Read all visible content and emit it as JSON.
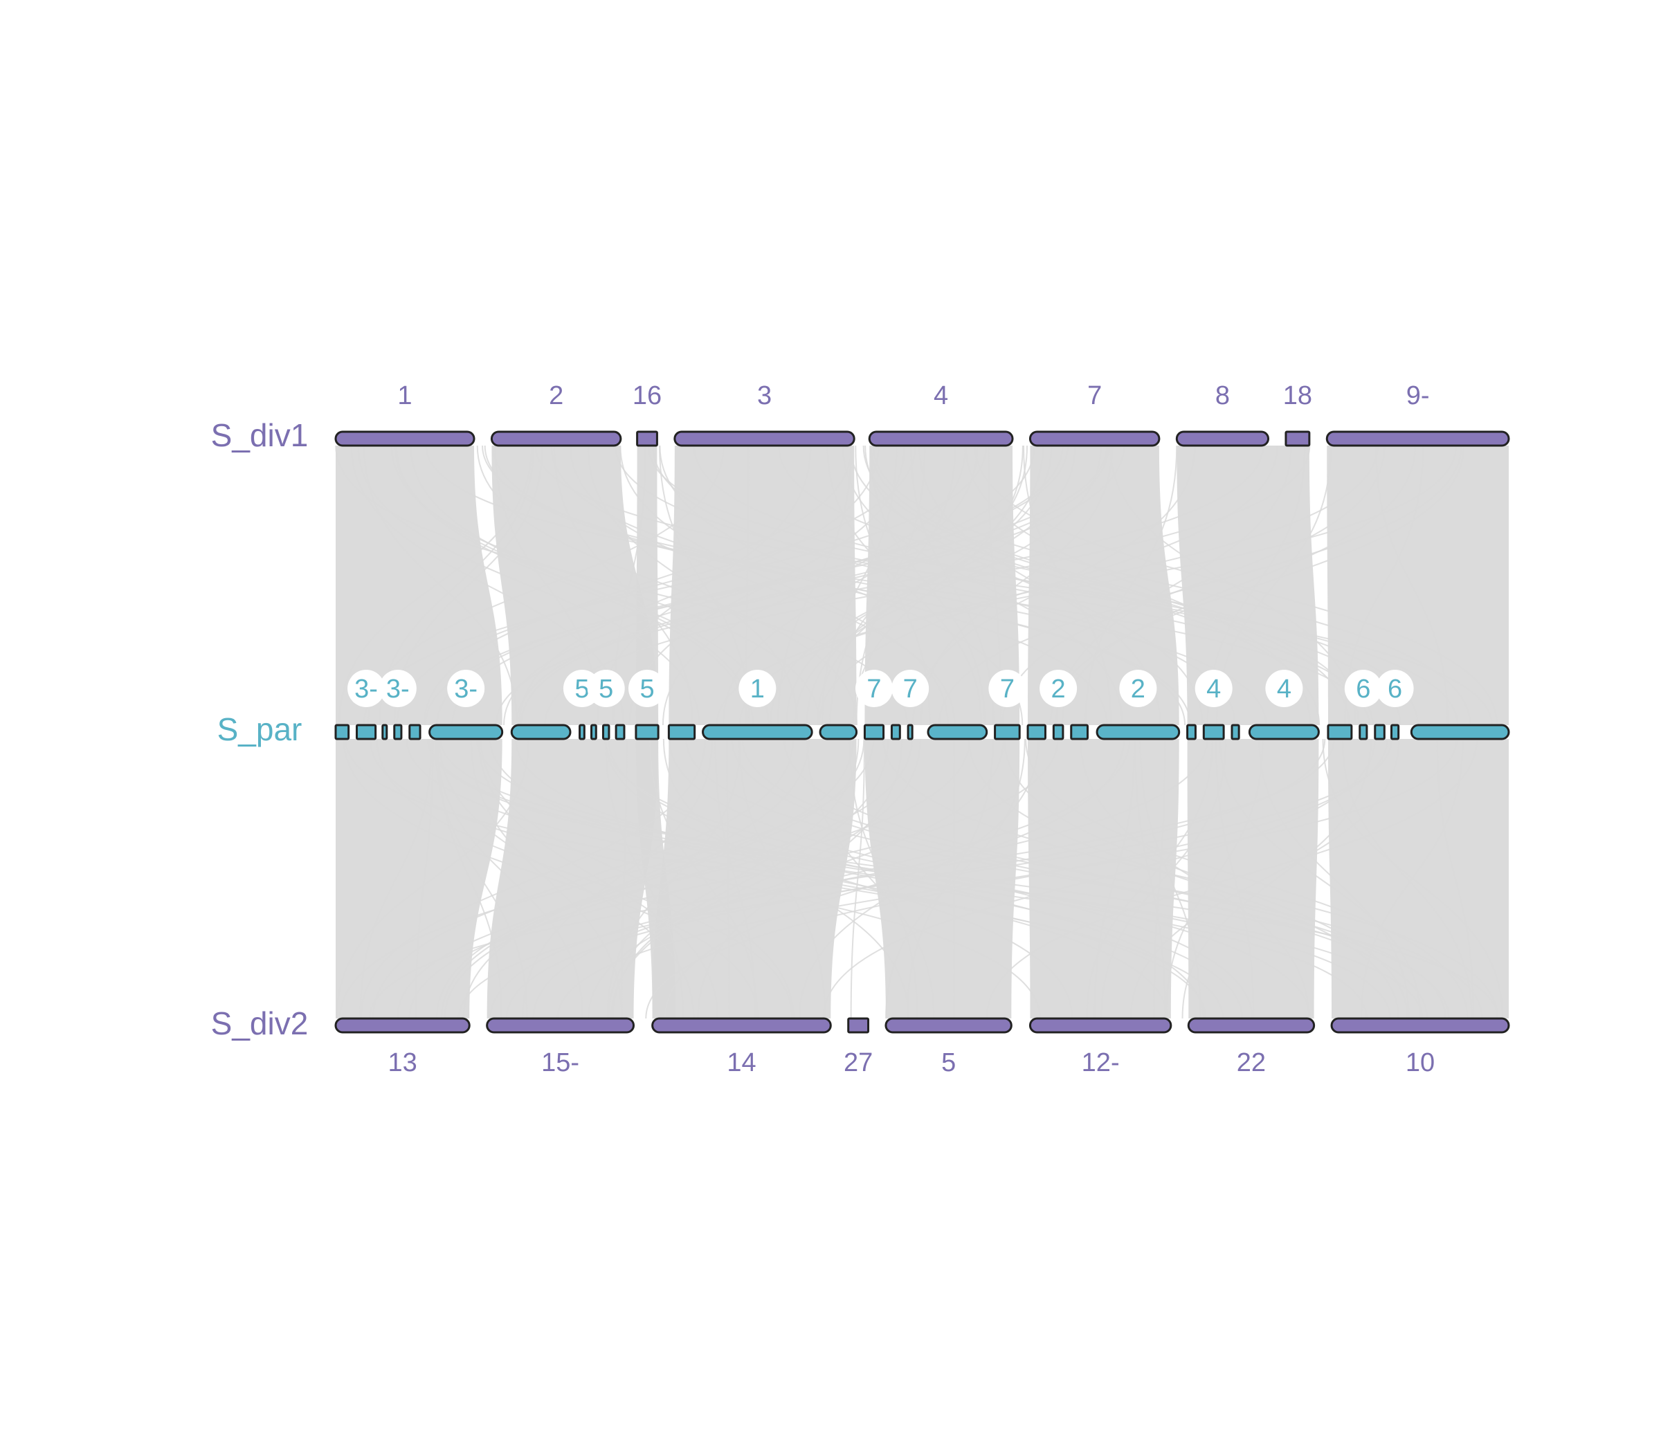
{
  "colors": {
    "div_fill": "#8878b8",
    "div_text": "#7b6fb0",
    "par_fill": "#5ab4c9",
    "par_text": "#58b2c6",
    "outline": "#222222",
    "link": "#d9d9d9",
    "background": "#ffffff"
  },
  "tracks": [
    {
      "id": "S_div1",
      "label": "S_div1",
      "color_key": "div",
      "label_side": "above",
      "chromosomes": [
        {
          "label": "1",
          "start": 0.0,
          "end": 0.118
        },
        {
          "label": "2",
          "start": 0.133,
          "end": 0.243
        },
        {
          "label": "16",
          "start": 0.257,
          "end": 0.274
        },
        {
          "label": "3",
          "start": 0.289,
          "end": 0.442
        },
        {
          "label": "4",
          "start": 0.455,
          "end": 0.577
        },
        {
          "label": "7",
          "start": 0.592,
          "end": 0.702
        },
        {
          "label": "8",
          "start": 0.717,
          "end": 0.795
        },
        {
          "label": "18",
          "start": 0.81,
          "end": 0.83
        },
        {
          "label": "9-",
          "start": 0.845,
          "end": 1.0
        }
      ]
    },
    {
      "id": "S_par",
      "label": "S_par",
      "color_key": "par",
      "label_side": "above-badge",
      "chromosomes": [
        {
          "label": "",
          "start": 0.0,
          "end": 0.011
        },
        {
          "label": "3-",
          "start": 0.018,
          "end": 0.034
        },
        {
          "label": "",
          "start": 0.04,
          "end": 0.043
        },
        {
          "label": "3-",
          "start": 0.05,
          "end": 0.056
        },
        {
          "label": "",
          "start": 0.063,
          "end": 0.072
        },
        {
          "label": "3-",
          "start": 0.08,
          "end": 0.142
        },
        {
          "label": "",
          "start": 0.15,
          "end": 0.2
        },
        {
          "label": "5",
          "start": 0.208,
          "end": 0.212
        },
        {
          "label": "",
          "start": 0.218,
          "end": 0.222
        },
        {
          "label": "5",
          "start": 0.228,
          "end": 0.233
        },
        {
          "label": "",
          "start": 0.239,
          "end": 0.246
        },
        {
          "label": "5",
          "start": 0.256,
          "end": 0.275
        },
        {
          "label": "",
          "start": 0.284,
          "end": 0.306
        },
        {
          "label": "1",
          "start": 0.313,
          "end": 0.406
        },
        {
          "label": "",
          "start": 0.413,
          "end": 0.444
        },
        {
          "label": "7",
          "start": 0.451,
          "end": 0.467
        },
        {
          "label": "",
          "start": 0.474,
          "end": 0.481
        },
        {
          "label": "7",
          "start": 0.488,
          "end": 0.491
        },
        {
          "label": "",
          "start": 0.505,
          "end": 0.555
        },
        {
          "label": "7",
          "start": 0.562,
          "end": 0.583
        },
        {
          "label": "",
          "start": 0.59,
          "end": 0.605
        },
        {
          "label": "2",
          "start": 0.612,
          "end": 0.62
        },
        {
          "label": "",
          "start": 0.627,
          "end": 0.641
        },
        {
          "label": "2",
          "start": 0.649,
          "end": 0.719
        },
        {
          "label": "",
          "start": 0.726,
          "end": 0.733
        },
        {
          "label": "4",
          "start": 0.74,
          "end": 0.757
        },
        {
          "label": "",
          "start": 0.764,
          "end": 0.77
        },
        {
          "label": "4",
          "start": 0.779,
          "end": 0.838
        },
        {
          "label": "",
          "start": 0.846,
          "end": 0.866
        },
        {
          "label": "6",
          "start": 0.873,
          "end": 0.879
        },
        {
          "label": "",
          "start": 0.886,
          "end": 0.894
        },
        {
          "label": "6",
          "start": 0.9,
          "end": 0.906
        },
        {
          "label": "",
          "start": 0.917,
          "end": 1.0
        }
      ]
    },
    {
      "id": "S_div2",
      "label": "S_div2",
      "color_key": "div",
      "label_side": "below",
      "chromosomes": [
        {
          "label": "13",
          "start": 0.0,
          "end": 0.114
        },
        {
          "label": "15-",
          "start": 0.129,
          "end": 0.254
        },
        {
          "label": "14",
          "start": 0.27,
          "end": 0.422
        },
        {
          "label": "27",
          "start": 0.437,
          "end": 0.454
        },
        {
          "label": "5",
          "start": 0.469,
          "end": 0.576
        },
        {
          "label": "12-",
          "start": 0.592,
          "end": 0.712
        },
        {
          "label": "22",
          "start": 0.727,
          "end": 0.834
        },
        {
          "label": "10",
          "start": 0.849,
          "end": 1.0
        }
      ]
    }
  ],
  "synteny_blocks": [
    {
      "from": [
        0.0,
        0.118
      ],
      "mid": [
        0.0,
        0.142
      ],
      "to": [
        0.0,
        0.114
      ]
    },
    {
      "from": [
        0.133,
        0.243
      ],
      "mid": [
        0.15,
        0.275
      ],
      "to": [
        0.129,
        0.254
      ]
    },
    {
      "from": [
        0.257,
        0.274
      ],
      "mid": [
        0.256,
        0.275
      ],
      "to": [
        0.27,
        0.29
      ]
    },
    {
      "from": [
        0.289,
        0.442
      ],
      "mid": [
        0.284,
        0.444
      ],
      "to": [
        0.27,
        0.422
      ]
    },
    {
      "from": [
        0.455,
        0.577
      ],
      "mid": [
        0.451,
        0.583
      ],
      "to": [
        0.469,
        0.576
      ]
    },
    {
      "from": [
        0.592,
        0.702
      ],
      "mid": [
        0.59,
        0.719
      ],
      "to": [
        0.592,
        0.712
      ]
    },
    {
      "from": [
        0.717,
        0.83
      ],
      "mid": [
        0.726,
        0.838
      ],
      "to": [
        0.727,
        0.834
      ]
    },
    {
      "from": [
        0.845,
        1.0
      ],
      "mid": [
        0.846,
        1.0
      ],
      "to": [
        0.849,
        1.0
      ]
    }
  ]
}
